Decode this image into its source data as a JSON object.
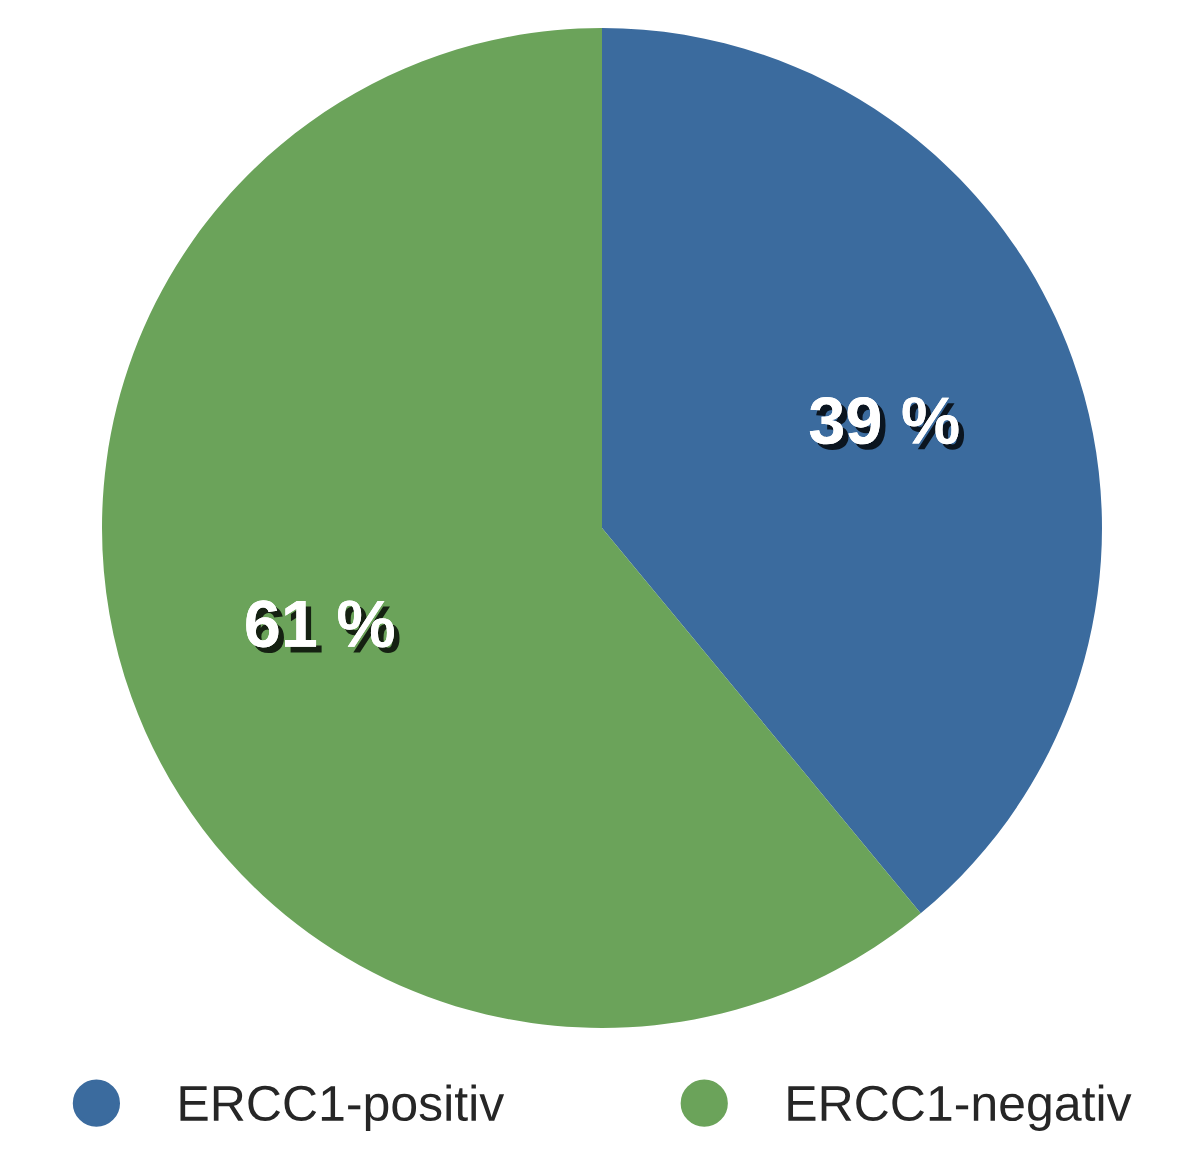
{
  "chart_data": {
    "type": "pie",
    "categories": [
      "ERCC1-positiv",
      "ERCC1-negativ"
    ],
    "values": [
      39,
      61
    ],
    "colors": [
      "#3b6b9e",
      "#6ba35a"
    ],
    "value_labels": [
      "39 %",
      "61 %"
    ],
    "legend": "bottom"
  }
}
